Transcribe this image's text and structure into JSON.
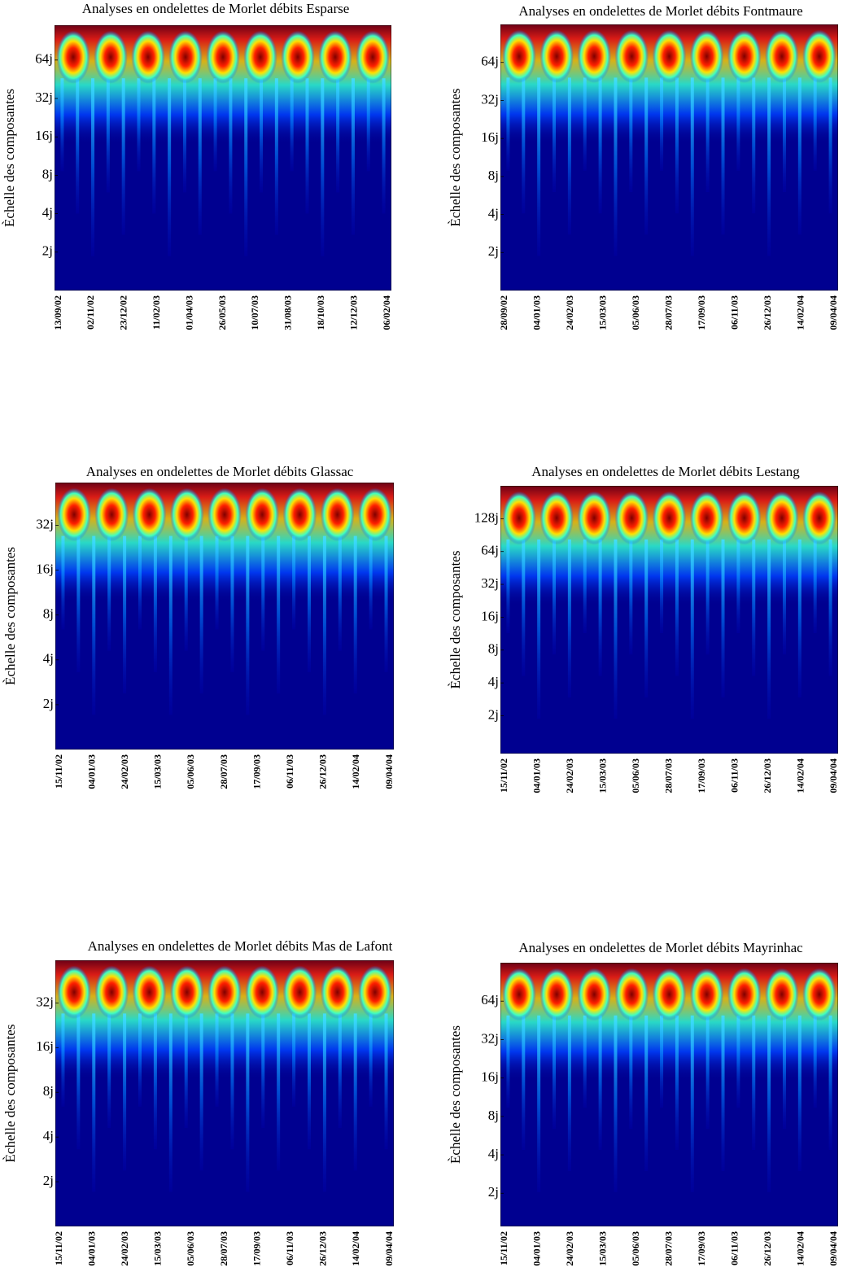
{
  "chart_data": [
    {
      "type": "heatmap",
      "title": "Analyses en ondelettes de Morlet débits Esparse",
      "ylabel": "Èchelle des composantes",
      "yscale": "log",
      "ylim": [
        1,
        120
      ],
      "yticks": [
        {
          "value": 2,
          "label": "2j"
        },
        {
          "value": 4,
          "label": "4j"
        },
        {
          "value": 8,
          "label": "8j"
        },
        {
          "value": 16,
          "label": "16j"
        },
        {
          "value": 32,
          "label": "32j"
        },
        {
          "value": 64,
          "label": "64j"
        }
      ],
      "xticks": [
        "13/09/02",
        "02/11/02",
        "23/12/02",
        "11/02/03",
        "01/04/03",
        "26/05/03",
        "10/07/03",
        "31/08/03",
        "18/10/03",
        "12/12/03",
        "06/02/04"
      ]
    },
    {
      "type": "heatmap",
      "title": "Analyses en ondelettes de Morlet débits Fontmaure",
      "ylabel": "Èchelle des composantes",
      "yscale": "log",
      "ylim": [
        1,
        128
      ],
      "yticks": [
        {
          "value": 2,
          "label": "2j"
        },
        {
          "value": 4,
          "label": "4j"
        },
        {
          "value": 8,
          "label": "8j"
        },
        {
          "value": 16,
          "label": "16j"
        },
        {
          "value": 32,
          "label": "32j"
        },
        {
          "value": 64,
          "label": "64j"
        }
      ],
      "xticks": [
        "28/09/02",
        "04/01/03",
        "24/02/03",
        "15/03/03",
        "05/06/03",
        "28/07/03",
        "17/09/03",
        "06/11/03",
        "26/12/03",
        "14/02/04",
        "09/04/04"
      ]
    },
    {
      "type": "heatmap",
      "title": "Analyses en ondelettes de Morlet débits Glassac",
      "ylabel": "Èchelle des composantes",
      "yscale": "log",
      "ylim": [
        1,
        62
      ],
      "yticks": [
        {
          "value": 2,
          "label": "2j"
        },
        {
          "value": 4,
          "label": "4j"
        },
        {
          "value": 8,
          "label": "8j"
        },
        {
          "value": 16,
          "label": "16j"
        },
        {
          "value": 32,
          "label": "32j"
        }
      ],
      "xticks": [
        "15/11/02",
        "04/01/03",
        "24/02/03",
        "15/03/03",
        "05/06/03",
        "28/07/03",
        "17/09/03",
        "06/11/03",
        "26/12/03",
        "14/02/04",
        "09/04/04"
      ]
    },
    {
      "type": "heatmap",
      "title": "Analyses en ondelettes de Morlet débits Lestang",
      "ylabel": "Èchelle des composantes",
      "yscale": "log",
      "ylim": [
        0.9,
        256
      ],
      "yticks": [
        {
          "value": 2,
          "label": "2j"
        },
        {
          "value": 4,
          "label": "4j"
        },
        {
          "value": 8,
          "label": "8j"
        },
        {
          "value": 16,
          "label": "16j"
        },
        {
          "value": 32,
          "label": "32j"
        },
        {
          "value": 64,
          "label": "64j"
        },
        {
          "value": 128,
          "label": "128j"
        }
      ],
      "xticks": [
        "15/11/02",
        "04/01/03",
        "24/02/03",
        "15/03/03",
        "05/06/03",
        "28/07/03",
        "17/09/03",
        "06/11/03",
        "26/12/03",
        "14/02/04",
        "09/04/04"
      ]
    },
    {
      "type": "heatmap",
      "title": "Analyses en ondelettes de Morlet débits Mas de Lafont",
      "ylabel": "Èchelle des composantes",
      "yscale": "log",
      "ylim": [
        1,
        62
      ],
      "yticks": [
        {
          "value": 2,
          "label": "2j"
        },
        {
          "value": 4,
          "label": "4j"
        },
        {
          "value": 8,
          "label": "8j"
        },
        {
          "value": 16,
          "label": "16j"
        },
        {
          "value": 32,
          "label": "32j"
        }
      ],
      "xticks": [
        "15/11/02",
        "04/01/03",
        "24/02/03",
        "15/03/03",
        "05/06/03",
        "28/07/03",
        "17/09/03",
        "06/11/03",
        "26/12/03",
        "14/02/04",
        "09/04/04"
      ]
    },
    {
      "type": "heatmap",
      "title": "Analyses en ondelettes de Morlet débits Mayrinhac",
      "ylabel": "Èchelle des composantes",
      "yscale": "log",
      "ylim": [
        1.1,
        128
      ],
      "yticks": [
        {
          "value": 2,
          "label": "2j"
        },
        {
          "value": 4,
          "label": "4j"
        },
        {
          "value": 8,
          "label": "8j"
        },
        {
          "value": 16,
          "label": "16j"
        },
        {
          "value": 32,
          "label": "32j"
        },
        {
          "value": 64,
          "label": "64j"
        }
      ],
      "xticks": [
        "15/11/02",
        "04/01/03",
        "24/02/03",
        "15/03/03",
        "05/06/03",
        "28/07/03",
        "17/09/03",
        "06/11/03",
        "26/12/03",
        "14/02/04",
        "09/04/04"
      ]
    }
  ]
}
